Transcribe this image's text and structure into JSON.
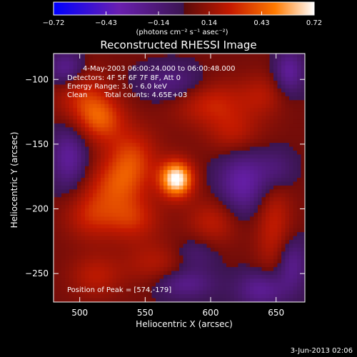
{
  "chart_data": {
    "type": "heatmap",
    "title": "Reconstructed RHESSI Image",
    "xlabel": "Heliocentric X (arcsec)",
    "ylabel": "Heliocentric Y (arcsec)",
    "xlim": [
      480,
      672
    ],
    "ylim": [
      -272,
      -80
    ],
    "xticks": [
      500,
      550,
      600,
      650
    ],
    "yticks": [
      -100,
      -150,
      -200,
      -250
    ],
    "annotations": [
      "4-May-2003 06:00:24.000 to 06:00:48.000",
      "Detectors: 4F 5F 6F 7F 8F, Att 0",
      "Energy Range: 3.0 - 6.0 keV",
      "Clean",
      "Total counts: 4.65E+03",
      "Position of Peak = [574,-179]"
    ],
    "peak": {
      "x": 574,
      "y": -179
    },
    "colorbar": {
      "ticks": [
        -0.72,
        -0.43,
        -0.14,
        0.14,
        0.43,
        0.72
      ],
      "units": "(photons cm⁻² s⁻¹ asec⁻²)",
      "colors": [
        "#0000ff",
        "#6a1fb0",
        "#3b1550",
        "#c51a00",
        "#ff7a00",
        "#ffffff"
      ]
    },
    "sources": [
      {
        "x": 574,
        "y": -177,
        "amp": 0.72,
        "sx": 9,
        "sy": 10
      },
      {
        "x": 540,
        "y": -160,
        "amp": 0.3,
        "sx": 14,
        "sy": 16
      },
      {
        "x": 516,
        "y": -130,
        "amp": 0.35,
        "sx": 13,
        "sy": 13
      },
      {
        "x": 500,
        "y": -112,
        "amp": 0.24,
        "sx": 14,
        "sy": 16
      },
      {
        "x": 600,
        "y": -118,
        "amp": 0.26,
        "sx": 20,
        "sy": 13
      },
      {
        "x": 618,
        "y": -142,
        "amp": 0.2,
        "sx": 14,
        "sy": 12
      },
      {
        "x": 528,
        "y": -182,
        "amp": 0.28,
        "sx": 16,
        "sy": 14
      },
      {
        "x": 508,
        "y": -205,
        "amp": 0.24,
        "sx": 14,
        "sy": 14
      },
      {
        "x": 540,
        "y": -208,
        "amp": 0.26,
        "sx": 15,
        "sy": 12
      },
      {
        "x": 512,
        "y": -252,
        "amp": 0.2,
        "sx": 14,
        "sy": 12
      },
      {
        "x": 558,
        "y": -242,
        "amp": 0.18,
        "sx": 18,
        "sy": 12
      },
      {
        "x": 602,
        "y": -210,
        "amp": 0.22,
        "sx": 14,
        "sy": 13
      },
      {
        "x": 648,
        "y": -210,
        "amp": 0.24,
        "sx": 10,
        "sy": 30
      },
      {
        "x": 640,
        "y": -112,
        "amp": 0.16,
        "sx": 12,
        "sy": 12
      },
      {
        "x": 492,
        "y": -160,
        "amp": -0.3,
        "sx": 10,
        "sy": 18
      },
      {
        "x": 490,
        "y": -92,
        "amp": -0.3,
        "sx": 10,
        "sy": 10
      },
      {
        "x": 572,
        "y": -103,
        "amp": -0.22,
        "sx": 18,
        "sy": 10
      },
      {
        "x": 625,
        "y": -180,
        "amp": -0.34,
        "sx": 14,
        "sy": 18
      },
      {
        "x": 650,
        "y": -170,
        "amp": -0.2,
        "sx": 10,
        "sy": 12
      },
      {
        "x": 580,
        "y": -258,
        "amp": -0.25,
        "sx": 16,
        "sy": 8
      },
      {
        "x": 640,
        "y": -262,
        "amp": -0.3,
        "sx": 14,
        "sy": 10
      },
      {
        "x": 660,
        "y": -94,
        "amp": -0.3,
        "sx": 8,
        "sy": 12
      },
      {
        "x": 588,
        "y": -235,
        "amp": -0.16,
        "sx": 12,
        "sy": 10
      },
      {
        "x": 662,
        "y": -242,
        "amp": -0.26,
        "sx": 8,
        "sy": 14
      }
    ]
  },
  "footer": {
    "date": "3-Jun-2013 02:06"
  }
}
